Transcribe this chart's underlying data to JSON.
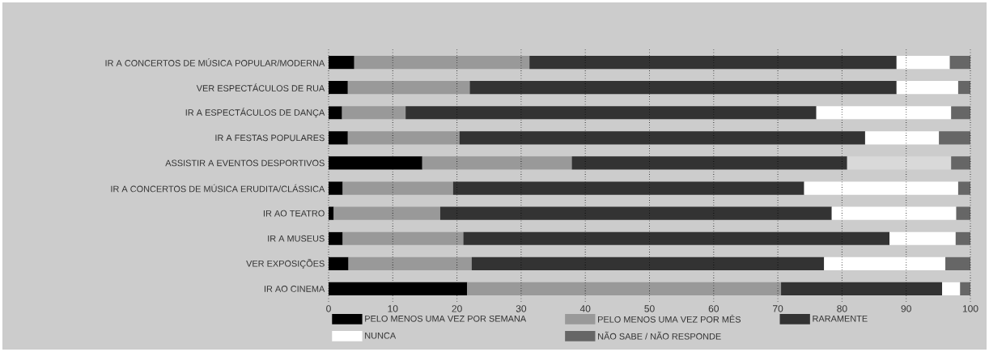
{
  "chart_data": {
    "type": "bar",
    "orientation": "horizontal",
    "stacked": true,
    "categories": [
      "IR A CONCERTOS DE MÚSICA POPULAR/MODERNA",
      "VER ESPECTÁCULOS DE RUA",
      "IR A ESPECTÁCULOS DE DANÇA",
      "IR A FESTAS POPULARES",
      "ASSISTIR A EVENTOS DESPORTIVOS",
      "IR A CONCERTOS DE MÚSICA ERUDITA/CLÁSSICA",
      "IR AO TEATRO",
      "IR A MUSEUS",
      "VER EXPOSIÇÕES",
      "IR AO CINEMA"
    ],
    "series": [
      {
        "name": "PELO MENOS UMA VEZ POR SEMANA",
        "color": "#000000",
        "values": [
          4.0,
          3.0,
          2.1,
          3.0,
          14.6,
          2.2,
          0.8,
          2.2,
          3.1,
          21.6
        ]
      },
      {
        "name": "PELO MENOS UMA VEZ POR MÊS",
        "color": "#999999",
        "values": [
          27.3,
          19.0,
          9.9,
          17.4,
          23.3,
          17.2,
          16.6,
          18.8,
          19.2,
          48.9
        ]
      },
      {
        "name": "RARAMENTE",
        "color": "#333333",
        "values": [
          57.2,
          66.5,
          64.0,
          63.2,
          42.9,
          54.7,
          61.0,
          66.4,
          54.9,
          25.1
        ]
      },
      {
        "name": "NUNCA",
        "color": "#ffffff",
        "colors": [
          "#ffffff",
          "#ffffff",
          "#ffffff",
          "#ffffff",
          "#d9d9d9",
          "#ffffff",
          "#ffffff",
          "#ffffff",
          "#ffffff",
          "#ffffff"
        ],
        "values": [
          8.3,
          9.6,
          21.0,
          11.5,
          16.2,
          24.0,
          19.4,
          10.3,
          18.9,
          2.8
        ]
      },
      {
        "name": "NÃO SABE / NÃO RESPONDE",
        "color": "#666666",
        "values": [
          3.2,
          1.9,
          3.0,
          4.9,
          3.0,
          1.9,
          2.2,
          2.3,
          3.9,
          1.6
        ]
      }
    ],
    "xlim": [
      0,
      100
    ],
    "xticks": [
      0,
      10,
      20,
      30,
      40,
      50,
      60,
      70,
      80,
      90,
      100
    ],
    "grid": "x",
    "legend": "bottom"
  }
}
